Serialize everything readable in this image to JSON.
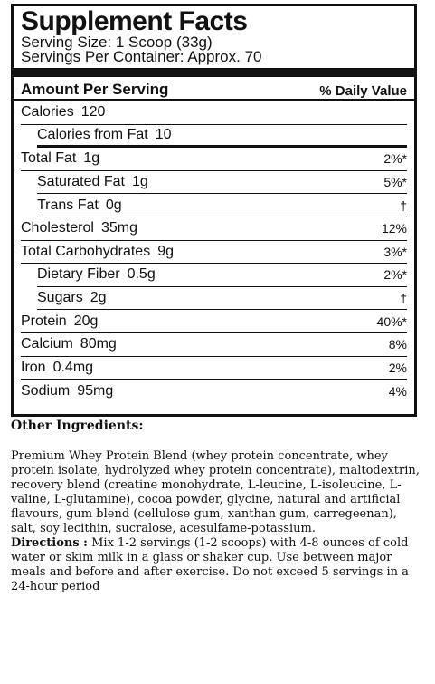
{
  "label": {
    "title": "Supplement Facts",
    "serving_size": "Serving Size: 1 Scoop (33g)",
    "servings_per_container": "Servings Per Container: Approx. 70",
    "amount_per_serving": "Amount Per Serving",
    "daily_value_header": "% Daily Value",
    "calories": {
      "name": "Calories",
      "amount": "120"
    },
    "calories_from_fat": {
      "name": "Calories from Fat",
      "amount": "10"
    },
    "nutrients": [
      {
        "name": "Total Fat",
        "amount": "1g",
        "dv": "2%*"
      },
      {
        "name": "Saturated Fat",
        "amount": "1g",
        "dv": "5%*"
      },
      {
        "name": "Trans Fat",
        "amount": "0g",
        "dv": "†"
      },
      {
        "name": "Cholesterol",
        "amount": "35mg",
        "dv": "12%"
      },
      {
        "name": "Total Carbohydrates",
        "amount": "9g",
        "dv": "3%*"
      },
      {
        "name": "Dietary Fiber",
        "amount": "0.5g",
        "dv": "2%*"
      },
      {
        "name": "Sugars",
        "amount": "2g",
        "dv": "†"
      },
      {
        "name": "Protein",
        "amount": "20g",
        "dv": "40%*"
      },
      {
        "name": "Calcium",
        "amount": "80mg",
        "dv": "8%"
      },
      {
        "name": "Iron",
        "amount": "0.4mg",
        "dv": "2%"
      },
      {
        "name": "Sodium",
        "amount": "95mg",
        "dv": "4%"
      }
    ]
  },
  "other_ingredients": {
    "heading": "Other Ingredients:",
    "text": "Premium Whey Protein Blend (whey protein concentrate, whey protein isolate, hydrolyzed whey protein concentrate), maltodextrin, recovery blend (creatine monohydrate, L-leucine, L-isoleucine, L-valine, L-glutamine), cocoa powder, glycine, natural and artificial flavours, gum blend (cellulose gum, xanthan gum, carregeenan), salt, soy lecithin, sucralose, acesulfame-potassium."
  },
  "directions": {
    "heading": "Directions :",
    "text": "Mix 1-2 servings (1-2 scoops) with 4-8 ounces of cold water or skim milk in a glass or shaker cup. Use between major meals and before and after exercise. Do not exceed 5 servings in a 24-hour period"
  }
}
